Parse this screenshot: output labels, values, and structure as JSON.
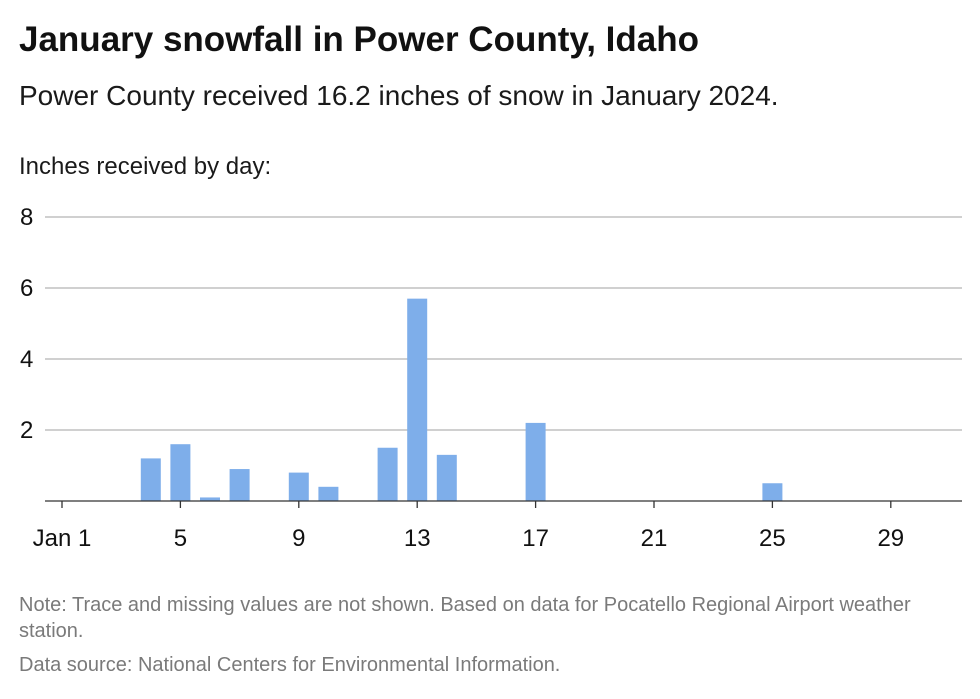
{
  "header": {
    "title": "January snowfall in Power County, Idaho",
    "subtitle": "Power County received 16.2 inches of snow in January 2024."
  },
  "footer": {
    "note": "Note: Trace and missing values are not shown. Based on data for Pocatello Regional Airport weather station.",
    "source": "Data source: National Centers for Environmental Information."
  },
  "colors": {
    "bar": "#7eaeea",
    "grid": "#b5b5b5",
    "axis": "#333333"
  },
  "chart_data": {
    "type": "bar",
    "title": "January snowfall in Power County, Idaho",
    "subtitle": "Power County received 16.2 inches of snow in January 2024.",
    "ylabel": "Inches received by day:",
    "xlabel": "",
    "ylim": [
      0,
      8
    ],
    "yticks": [
      2,
      4,
      6,
      8
    ],
    "xtick_days": [
      1,
      5,
      9,
      13,
      17,
      21,
      25,
      29
    ],
    "xtick_labels": [
      "Jan 1",
      "5",
      "9",
      "13",
      "17",
      "21",
      "25",
      "29"
    ],
    "grid": true,
    "days": [
      4,
      5,
      6,
      7,
      9,
      10,
      12,
      13,
      14,
      17,
      25
    ],
    "values": [
      1.2,
      1.6,
      0.1,
      0.9,
      0.8,
      0.4,
      1.5,
      5.7,
      1.3,
      2.2,
      0.5
    ]
  }
}
